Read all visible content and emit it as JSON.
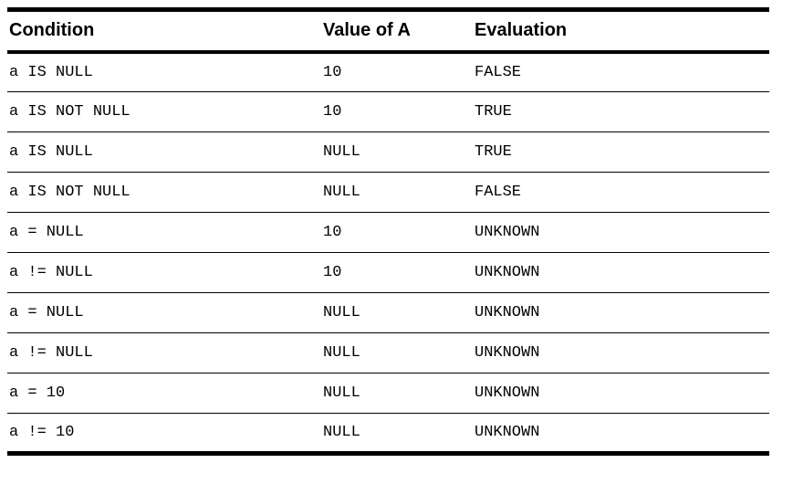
{
  "table": {
    "columns": [
      {
        "label": "Condition"
      },
      {
        "label": "Value of A"
      },
      {
        "label": "Evaluation"
      }
    ],
    "rows": [
      {
        "condition": "a IS NULL",
        "value": "10",
        "evaluation": "FALSE"
      },
      {
        "condition": "a IS NOT NULL",
        "value": "10",
        "evaluation": "TRUE"
      },
      {
        "condition": "a IS NULL",
        "value": "NULL",
        "evaluation": "TRUE"
      },
      {
        "condition": "a IS NOT NULL",
        "value": "NULL",
        "evaluation": "FALSE"
      },
      {
        "condition": "a = NULL",
        "value": "10",
        "evaluation": "UNKNOWN"
      },
      {
        "condition": "a != NULL",
        "value": "10",
        "evaluation": "UNKNOWN"
      },
      {
        "condition": "a = NULL",
        "value": "NULL",
        "evaluation": "UNKNOWN"
      },
      {
        "condition": "a != NULL",
        "value": "NULL",
        "evaluation": "UNKNOWN"
      },
      {
        "condition": "a = 10",
        "value": "NULL",
        "evaluation": "UNKNOWN"
      },
      {
        "condition": "a != 10",
        "value": "NULL",
        "evaluation": "UNKNOWN"
      }
    ],
    "colors": {
      "text": "#000000",
      "rule": "#000000",
      "background": "#ffffff"
    }
  }
}
